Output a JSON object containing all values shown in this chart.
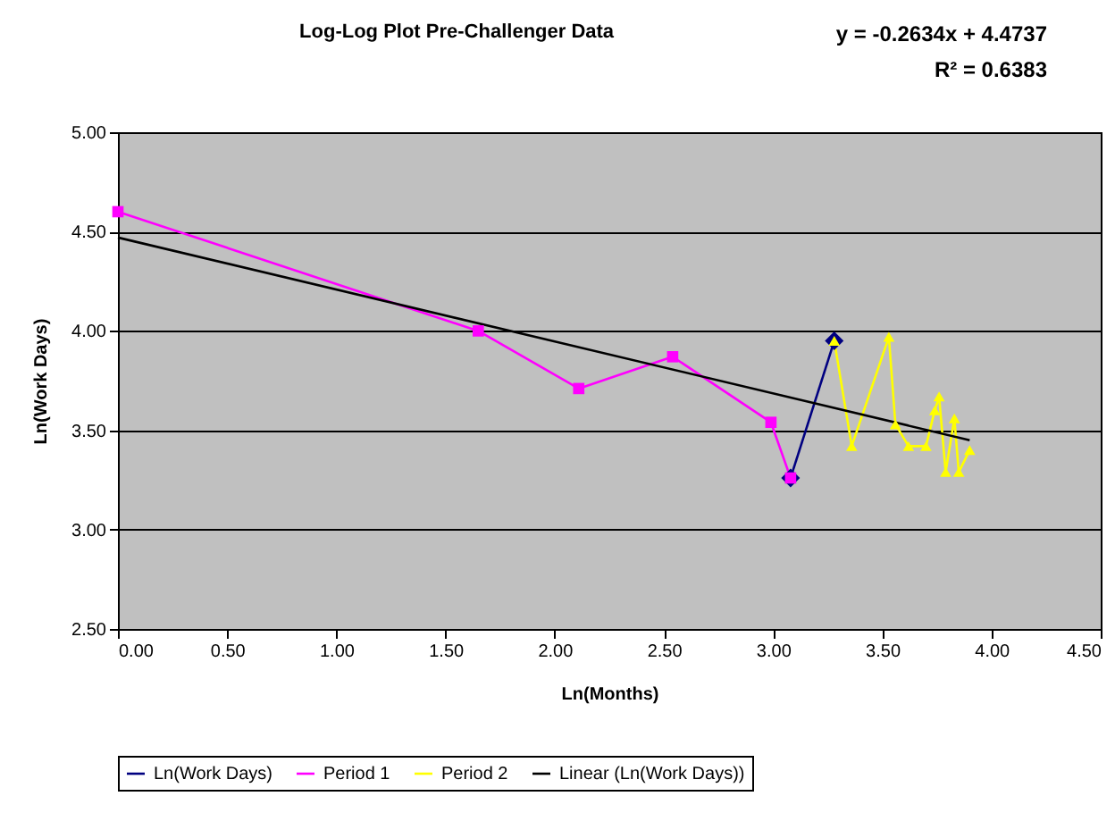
{
  "chart_data": {
    "type": "line",
    "title": "Log-Log Plot Pre-Challenger Data",
    "xlabel": "Ln(Months)",
    "ylabel": "Ln(Work Days)",
    "annotations": [
      "y = -0.2634x + 4.4737",
      "R² = 0.6383"
    ],
    "xlim": [
      0,
      4.5
    ],
    "xticks": [
      {
        "value": 0,
        "label": "0.00"
      },
      {
        "value": 0.5,
        "label": "0.50"
      },
      {
        "value": 1,
        "label": "1.00"
      },
      {
        "value": 1.5,
        "label": "1.50"
      },
      {
        "value": 2,
        "label": "2.00"
      },
      {
        "value": 2.5,
        "label": "2.50"
      },
      {
        "value": 3,
        "label": "3.00"
      },
      {
        "value": 3.5,
        "label": "3.50"
      },
      {
        "value": 4,
        "label": "4.00"
      },
      {
        "value": 4.5,
        "label": "4.50"
      }
    ],
    "ylim": [
      2.5,
      5
    ],
    "yticks": [
      {
        "value": 2.5,
        "label": "2.50"
      },
      {
        "value": 3,
        "label": "3.00"
      },
      {
        "value": 3.5,
        "label": "3.50"
      },
      {
        "value": 4,
        "label": "4.00"
      },
      {
        "value": 4.5,
        "label": "4.50"
      },
      {
        "value": 5,
        "label": "5.00"
      }
    ],
    "grid": "y",
    "legend": "bottom",
    "series": [
      {
        "name": "Ln(Work Days)",
        "color": "#000080",
        "marker": "diamond",
        "x": [
          3.08,
          3.28
        ],
        "values": [
          3.26,
          3.95
        ]
      },
      {
        "name": "Period 1",
        "color": "#ff00ff",
        "marker": "square",
        "x": [
          0,
          1.65,
          2.11,
          2.54,
          2.99,
          3.08
        ],
        "values": [
          4.6,
          4.0,
          3.71,
          3.87,
          3.54,
          3.26
        ]
      },
      {
        "name": "Period 2",
        "color": "#ffff00",
        "marker": "triangle",
        "x": [
          3.28,
          3.36,
          3.53,
          3.56,
          3.62,
          3.7,
          3.74,
          3.76,
          3.79,
          3.83,
          3.85,
          3.9
        ],
        "values": [
          3.95,
          3.42,
          3.97,
          3.53,
          3.42,
          3.42,
          3.6,
          3.67,
          3.29,
          3.56,
          3.29,
          3.4
        ]
      },
      {
        "name": "Linear (Ln(Work Days))",
        "color": "#000000",
        "marker": "none",
        "x": [
          0,
          3.9
        ],
        "values": [
          4.47,
          3.45
        ]
      }
    ]
  }
}
